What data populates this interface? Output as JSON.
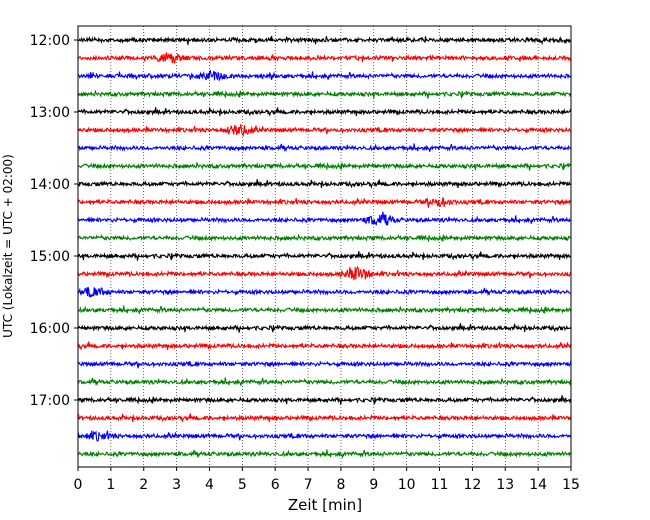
{
  "chart_data": {
    "type": "line",
    "title": "",
    "xlabel": "Zeit  [min]",
    "ylabel": "UTC (Lokalzeit = UTC + 02:00)",
    "xlim": [
      0,
      15
    ],
    "x_ticks": [
      "0",
      "1",
      "2",
      "3",
      "4",
      "5",
      "6",
      "7",
      "8",
      "9",
      "10",
      "11",
      "12",
      "13",
      "14",
      "15"
    ],
    "y_tick_labels": [
      "12:00",
      "13:00",
      "14:00",
      "15:00",
      "16:00",
      "17:00"
    ],
    "grid": "vertical dotted at each minute",
    "trace_interval_minutes": 15,
    "trace_start": "12:00",
    "trace_count": 24,
    "trace_colors": [
      "#000000",
      "#ff0000",
      "#0000ff",
      "#008000"
    ],
    "events": [
      {
        "trace": 1,
        "minute": 2.8,
        "amp": 2.0
      },
      {
        "trace": 2,
        "minute": 4.1,
        "amp": 2.2
      },
      {
        "trace": 5,
        "minute": 4.9,
        "amp": 2.5
      },
      {
        "trace": 13,
        "minute": 8.5,
        "amp": 3.0
      },
      {
        "trace": 10,
        "minute": 9.2,
        "amp": 2.6
      },
      {
        "trace": 14,
        "minute": 0.5,
        "amp": 2.0
      },
      {
        "trace": 9,
        "minute": 11.0,
        "amp": 1.8
      },
      {
        "trace": 22,
        "minute": 0.6,
        "amp": 1.6
      }
    ]
  }
}
